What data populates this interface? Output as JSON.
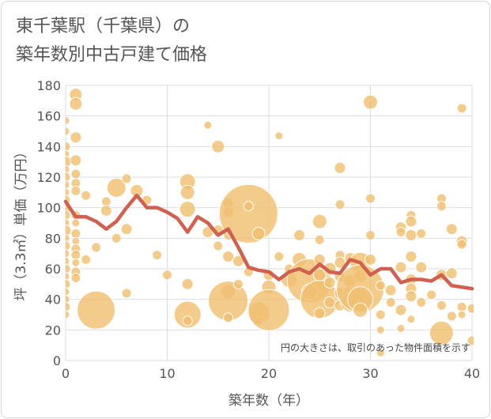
{
  "title_line1": "東千葉駅（千葉県）の",
  "title_line2": "築年数別中古戸建て価格",
  "chart_data": {
    "type": "scatter",
    "title": "東千葉駅（千葉県）の 築年数別中古戸建て価格",
    "xlabel": "築年数（年）",
    "ylabel": "坪（3.3㎡）単価（万円）",
    "xlim": [
      0,
      40
    ],
    "ylim": [
      0,
      180
    ],
    "x_ticks": [
      0,
      10,
      20,
      30,
      40
    ],
    "y_ticks": [
      0,
      20,
      40,
      60,
      80,
      100,
      120,
      140,
      160,
      180
    ],
    "grid": true,
    "note": "円の大きさは、取引のあった物件面積を示す",
    "bubble_color": "#f0c070",
    "line_color": "#d06050",
    "bubbles": [
      {
        "x": 0,
        "y": 157,
        "s": 5
      },
      {
        "x": 0,
        "y": 150,
        "s": 5
      },
      {
        "x": 0,
        "y": 140,
        "s": 6
      },
      {
        "x": 0,
        "y": 135,
        "s": 5
      },
      {
        "x": 0,
        "y": 130,
        "s": 7
      },
      {
        "x": 0,
        "y": 125,
        "s": 5
      },
      {
        "x": 0,
        "y": 120,
        "s": 6
      },
      {
        "x": 0,
        "y": 115,
        "s": 5
      },
      {
        "x": 0,
        "y": 110,
        "s": 5
      },
      {
        "x": 0,
        "y": 105,
        "s": 6
      },
      {
        "x": 0,
        "y": 100,
        "s": 7
      },
      {
        "x": 0,
        "y": 95,
        "s": 6
      },
      {
        "x": 0,
        "y": 90,
        "s": 5
      },
      {
        "x": 0,
        "y": 85,
        "s": 7
      },
      {
        "x": 0,
        "y": 80,
        "s": 5
      },
      {
        "x": 0,
        "y": 75,
        "s": 6
      },
      {
        "x": 0,
        "y": 70,
        "s": 5
      },
      {
        "x": 0,
        "y": 65,
        "s": 5
      },
      {
        "x": 0,
        "y": 60,
        "s": 6
      },
      {
        "x": 0,
        "y": 55,
        "s": 5
      },
      {
        "x": 0,
        "y": 50,
        "s": 6
      },
      {
        "x": 0,
        "y": 45,
        "s": 5
      },
      {
        "x": 0,
        "y": 40,
        "s": 5
      },
      {
        "x": 0,
        "y": 35,
        "s": 6
      },
      {
        "x": 0,
        "y": 30,
        "s": 5
      },
      {
        "x": 1,
        "y": 174,
        "s": 8
      },
      {
        "x": 1,
        "y": 168,
        "s": 8
      },
      {
        "x": 1,
        "y": 146,
        "s": 7
      },
      {
        "x": 1,
        "y": 131,
        "s": 7
      },
      {
        "x": 1,
        "y": 122,
        "s": 6
      },
      {
        "x": 1,
        "y": 116,
        "s": 6
      },
      {
        "x": 1,
        "y": 111,
        "s": 6
      },
      {
        "x": 1,
        "y": 95,
        "s": 6
      },
      {
        "x": 1,
        "y": 90,
        "s": 5
      },
      {
        "x": 1,
        "y": 83,
        "s": 6
      },
      {
        "x": 1,
        "y": 78,
        "s": 5
      },
      {
        "x": 1,
        "y": 73,
        "s": 6
      },
      {
        "x": 1,
        "y": 69,
        "s": 6
      },
      {
        "x": 1,
        "y": 64,
        "s": 5
      },
      {
        "x": 1,
        "y": 58,
        "s": 6
      },
      {
        "x": 1,
        "y": 54,
        "s": 6
      },
      {
        "x": 2,
        "y": 108,
        "s": 6
      },
      {
        "x": 2,
        "y": 66,
        "s": 6
      },
      {
        "x": 3,
        "y": 74,
        "s": 6
      },
      {
        "x": 3,
        "y": 33,
        "s": 24
      },
      {
        "x": 4,
        "y": 104,
        "s": 6
      },
      {
        "x": 4,
        "y": 98,
        "s": 7
      },
      {
        "x": 5,
        "y": 113,
        "s": 12
      },
      {
        "x": 5,
        "y": 80,
        "s": 6
      },
      {
        "x": 6,
        "y": 119,
        "s": 6
      },
      {
        "x": 6,
        "y": 86,
        "s": 7
      },
      {
        "x": 6,
        "y": 44,
        "s": 6
      },
      {
        "x": 7,
        "y": 111,
        "s": 8
      },
      {
        "x": 8,
        "y": 105,
        "s": 6
      },
      {
        "x": 9,
        "y": 69,
        "s": 6
      },
      {
        "x": 10,
        "y": 56,
        "s": 6
      },
      {
        "x": 12,
        "y": 117,
        "s": 10
      },
      {
        "x": 12,
        "y": 110,
        "s": 9
      },
      {
        "x": 12,
        "y": 99,
        "s": 10
      },
      {
        "x": 12,
        "y": 50,
        "s": 7
      },
      {
        "x": 12,
        "y": 30,
        "s": 17
      },
      {
        "x": 12,
        "y": 26,
        "s": 6
      },
      {
        "x": 14,
        "y": 154,
        "s": 5
      },
      {
        "x": 14,
        "y": 84,
        "s": 7
      },
      {
        "x": 15,
        "y": 140,
        "s": 8
      },
      {
        "x": 15,
        "y": 85,
        "s": 7
      },
      {
        "x": 15,
        "y": 75,
        "s": 6
      },
      {
        "x": 16,
        "y": 103,
        "s": 7
      },
      {
        "x": 16,
        "y": 97,
        "s": 7
      },
      {
        "x": 16,
        "y": 82,
        "s": 6
      },
      {
        "x": 16,
        "y": 68,
        "s": 7
      },
      {
        "x": 16,
        "y": 45,
        "s": 9
      },
      {
        "x": 16,
        "y": 39,
        "s": 25
      },
      {
        "x": 16,
        "y": 28,
        "s": 6
      },
      {
        "x": 17,
        "y": 65,
        "s": 7
      },
      {
        "x": 17,
        "y": 50,
        "s": 6
      },
      {
        "x": 18,
        "y": 96,
        "s": 37
      },
      {
        "x": 18,
        "y": 101,
        "s": 6
      },
      {
        "x": 18,
        "y": 58,
        "s": 6
      },
      {
        "x": 19,
        "y": 83,
        "s": 8
      },
      {
        "x": 19,
        "y": 31,
        "s": 14
      },
      {
        "x": 19,
        "y": 26,
        "s": 6
      },
      {
        "x": 20,
        "y": 56,
        "s": 7
      },
      {
        "x": 20,
        "y": 48,
        "s": 9
      },
      {
        "x": 20,
        "y": 33,
        "s": 26
      },
      {
        "x": 21,
        "y": 147,
        "s": 5
      },
      {
        "x": 21,
        "y": 68,
        "s": 6
      },
      {
        "x": 22,
        "y": 60,
        "s": 6
      },
      {
        "x": 22,
        "y": 53,
        "s": 10
      },
      {
        "x": 23,
        "y": 82,
        "s": 7
      },
      {
        "x": 23,
        "y": 66,
        "s": 9
      },
      {
        "x": 24,
        "y": 52,
        "s": 28
      },
      {
        "x": 24,
        "y": 45,
        "s": 10
      },
      {
        "x": 25,
        "y": 91,
        "s": 9
      },
      {
        "x": 25,
        "y": 79,
        "s": 6
      },
      {
        "x": 25,
        "y": 66,
        "s": 7
      },
      {
        "x": 25,
        "y": 56,
        "s": 8
      },
      {
        "x": 25,
        "y": 40,
        "s": 24
      },
      {
        "x": 25,
        "y": 31,
        "s": 7
      },
      {
        "x": 26,
        "y": 60,
        "s": 8
      },
      {
        "x": 26,
        "y": 51,
        "s": 7
      },
      {
        "x": 26,
        "y": 38,
        "s": 7
      },
      {
        "x": 27,
        "y": 126,
        "s": 7
      },
      {
        "x": 27,
        "y": 102,
        "s": 6
      },
      {
        "x": 27,
        "y": 69,
        "s": 6
      },
      {
        "x": 27,
        "y": 64,
        "s": 7
      },
      {
        "x": 27,
        "y": 55,
        "s": 7
      },
      {
        "x": 27,
        "y": 44,
        "s": 7
      },
      {
        "x": 27,
        "y": 36,
        "s": 7
      },
      {
        "x": 28,
        "y": 67,
        "s": 7
      },
      {
        "x": 28,
        "y": 52,
        "s": 8
      },
      {
        "x": 28,
        "y": 44,
        "s": 9
      },
      {
        "x": 28,
        "y": 38,
        "s": 12
      },
      {
        "x": 29,
        "y": 64,
        "s": 13
      },
      {
        "x": 29,
        "y": 55,
        "s": 8
      },
      {
        "x": 29,
        "y": 47,
        "s": 30
      },
      {
        "x": 29,
        "y": 40,
        "s": 16
      },
      {
        "x": 29,
        "y": 33,
        "s": 9
      },
      {
        "x": 30,
        "y": 169,
        "s": 9
      },
      {
        "x": 30,
        "y": 106,
        "s": 6
      },
      {
        "x": 30,
        "y": 82,
        "s": 6
      },
      {
        "x": 30,
        "y": 66,
        "s": 7
      },
      {
        "x": 31,
        "y": 49,
        "s": 6
      },
      {
        "x": 31,
        "y": 30,
        "s": 6
      },
      {
        "x": 31,
        "y": 20,
        "s": 5
      },
      {
        "x": 31,
        "y": 5,
        "s": 5
      },
      {
        "x": 32,
        "y": 46,
        "s": 7
      },
      {
        "x": 32,
        "y": 38,
        "s": 6
      },
      {
        "x": 33,
        "y": 87,
        "s": 7
      },
      {
        "x": 33,
        "y": 84,
        "s": 6
      },
      {
        "x": 33,
        "y": 61,
        "s": 7
      },
      {
        "x": 33,
        "y": 33,
        "s": 7
      },
      {
        "x": 33,
        "y": 21,
        "s": 5
      },
      {
        "x": 34,
        "y": 95,
        "s": 6
      },
      {
        "x": 34,
        "y": 91,
        "s": 7
      },
      {
        "x": 34,
        "y": 82,
        "s": 7
      },
      {
        "x": 34,
        "y": 68,
        "s": 7
      },
      {
        "x": 34,
        "y": 53,
        "s": 7
      },
      {
        "x": 34,
        "y": 47,
        "s": 7
      },
      {
        "x": 34,
        "y": 42,
        "s": 7
      },
      {
        "x": 34,
        "y": 27,
        "s": 5
      },
      {
        "x": 35,
        "y": 83,
        "s": 6
      },
      {
        "x": 35,
        "y": 61,
        "s": 7
      },
      {
        "x": 35,
        "y": 38,
        "s": 6
      },
      {
        "x": 36,
        "y": 43,
        "s": 6
      },
      {
        "x": 37,
        "y": 106,
        "s": 6
      },
      {
        "x": 37,
        "y": 101,
        "s": 6
      },
      {
        "x": 37,
        "y": 56,
        "s": 7
      },
      {
        "x": 37,
        "y": 36,
        "s": 6
      },
      {
        "x": 37,
        "y": 18,
        "s": 15
      },
      {
        "x": 38,
        "y": 86,
        "s": 7
      },
      {
        "x": 38,
        "y": 57,
        "s": 7
      },
      {
        "x": 38,
        "y": 29,
        "s": 6
      },
      {
        "x": 39,
        "y": 165,
        "s": 6
      },
      {
        "x": 39,
        "y": 78,
        "s": 7
      },
      {
        "x": 39,
        "y": 76,
        "s": 6
      },
      {
        "x": 39,
        "y": 35,
        "s": 6
      },
      {
        "x": 39,
        "y": 30,
        "s": 5
      },
      {
        "x": 40,
        "y": 34,
        "s": 6
      },
      {
        "x": 40,
        "y": 13,
        "s": 6
      }
    ],
    "trend": {
      "x": [
        0,
        1,
        2,
        3,
        4,
        5,
        6,
        7,
        8,
        9,
        10,
        11,
        12,
        13,
        14,
        15,
        16,
        17,
        18,
        19,
        20,
        21,
        22,
        23,
        24,
        25,
        26,
        27,
        28,
        29,
        30,
        31,
        32,
        33,
        34,
        35,
        36,
        37,
        38,
        39,
        40
      ],
      "y": [
        104,
        94,
        94,
        91,
        86,
        91,
        100,
        108,
        100,
        100,
        97,
        93,
        84,
        94,
        90,
        82,
        86,
        74,
        61,
        59,
        58,
        53,
        58,
        60,
        57,
        63,
        58,
        57,
        66,
        64,
        56,
        60,
        60,
        51,
        53,
        53,
        52,
        56,
        49,
        48,
        47
      ]
    }
  }
}
